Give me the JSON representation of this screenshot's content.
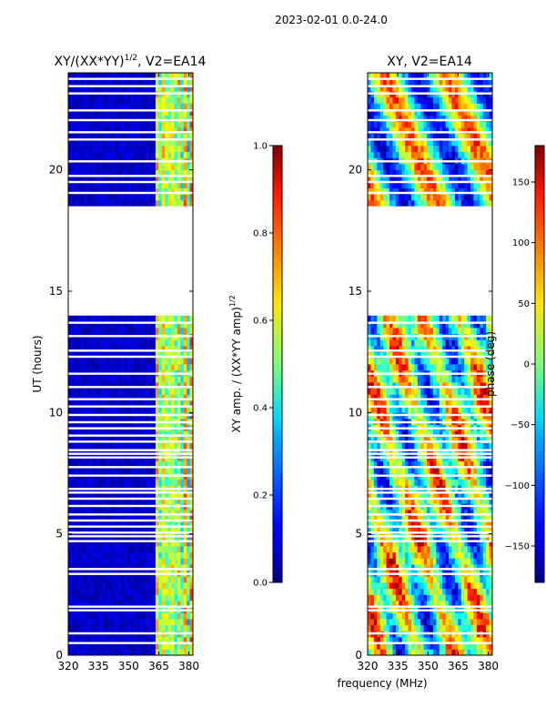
{
  "suptitle": "2023-02-01 0.0-24.0",
  "chart_data": [
    {
      "type": "heatmap",
      "title_main": "XY/(XX*YY)",
      "title_sup": "1/2",
      "title_tail": ", V2=EA14",
      "xlabel": "",
      "ylabel": "UT (hours)",
      "xlim": [
        320,
        382
      ],
      "ylim": [
        0,
        24
      ],
      "xticks": [
        320,
        335,
        350,
        365,
        380
      ],
      "yticks": [
        0,
        5,
        10,
        15,
        20
      ],
      "data_gap_hours": [
        14.0,
        18.5
      ],
      "band_edge_mhz": 364,
      "colorbar": {
        "label_main": "XY amp. / (XX*YY amp)",
        "label_sup": "1/2",
        "range": [
          0.0,
          1.0
        ],
        "ticks": [
          "0.0",
          "0.2",
          "0.4",
          "0.6",
          "0.8",
          "1.0"
        ]
      }
    },
    {
      "type": "heatmap",
      "title_main": "XY, V2=EA14",
      "xlabel": "frequency (MHz)",
      "ylabel": "",
      "xlim": [
        320,
        382
      ],
      "ylim": [
        0,
        24
      ],
      "xticks": [
        320,
        335,
        350,
        365,
        380
      ],
      "yticks": [
        0,
        5,
        10,
        15,
        20
      ],
      "data_gap_hours": [
        14.0,
        18.5
      ],
      "colorbar": {
        "label": "phase (deg)",
        "range": [
          -180,
          180
        ],
        "ticks": [
          "-150",
          "-100",
          "-50",
          "0",
          "50",
          "100",
          "150"
        ]
      }
    }
  ],
  "flagged_rows_ut": [
    0.5,
    0.9,
    1.85,
    2.0,
    3.35,
    3.55,
    4.7,
    4.9,
    5.05,
    5.3,
    5.55,
    5.8,
    6.15,
    6.45,
    6.7,
    6.85,
    7.4,
    7.75,
    8.15,
    8.3,
    8.45,
    8.8,
    9.05,
    9.35,
    9.6,
    9.9,
    10.25,
    10.55,
    11.05,
    11.6,
    12.3,
    12.55,
    13.15,
    13.7,
    19.05,
    19.5,
    19.75,
    20.35,
    21.25,
    21.55,
    22.05,
    22.45,
    23.15,
    23.45,
    23.75
  ]
}
